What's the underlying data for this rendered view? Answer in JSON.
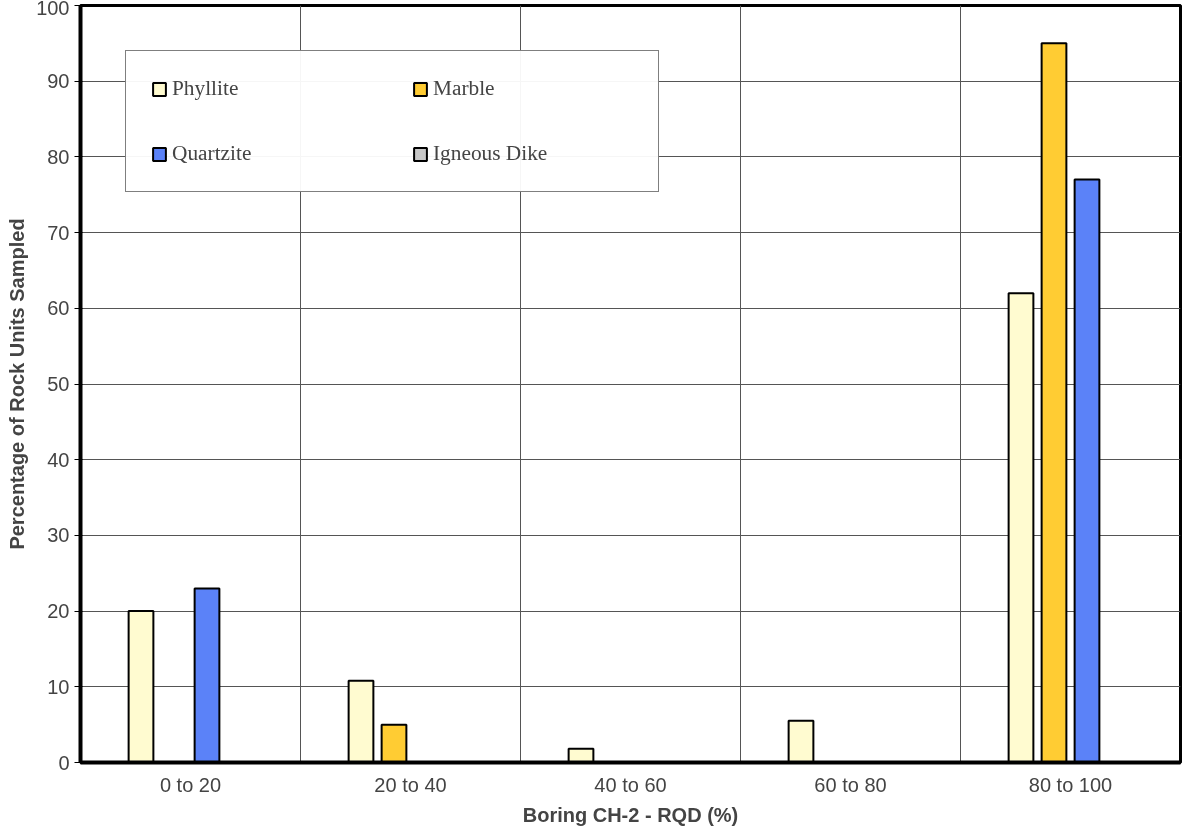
{
  "chart_data": {
    "type": "bar",
    "xlabel": "Boring CH-2 - RQD (%)",
    "ylabel": "Percentage of Rock Units Sampled",
    "categories": [
      "0 to 20",
      "20 to 40",
      "40 to 60",
      "60 to 80",
      "80 to 100"
    ],
    "series": [
      {
        "name": "Phyllite",
        "color": "#fffbd0",
        "values": [
          20,
          10.8,
          1.8,
          5.5,
          62
        ]
      },
      {
        "name": "Marble",
        "color": "#ffcc33",
        "values": [
          null,
          5,
          null,
          null,
          95
        ]
      },
      {
        "name": "Quartzite",
        "color": "#5b82f8",
        "values": [
          23,
          null,
          null,
          null,
          77
        ]
      },
      {
        "name": "Igneous Dike",
        "color": "#c8c8c8",
        "values": [
          null,
          null,
          null,
          null,
          null
        ]
      }
    ],
    "ylim": [
      0,
      100
    ],
    "yticks": [
      0,
      10,
      20,
      30,
      40,
      50,
      60,
      70,
      80,
      90,
      100
    ],
    "grid": true,
    "legend": "top left"
  }
}
